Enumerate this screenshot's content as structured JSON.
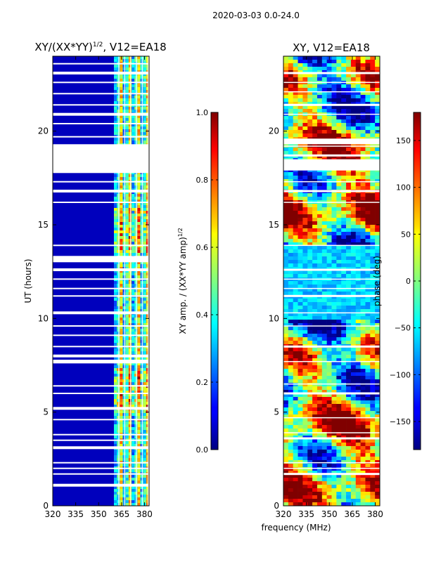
{
  "figure": {
    "suptitle": "2020-03-03 0.0-24.0",
    "xlabel_common": "frequency (MHz)"
  },
  "chart_data": [
    {
      "type": "heatmap",
      "title": "XY/(XX*YY)",
      "title_exp": "1/2",
      "title_suffix": ", V12=EA18",
      "ylabel": "UT (hours)",
      "xlim": [
        320,
        383
      ],
      "ylim": [
        0,
        24
      ],
      "xticks": [
        320,
        335,
        350,
        365,
        380
      ],
      "yticks": [
        0,
        5,
        10,
        15,
        20
      ],
      "colormap": "jet",
      "colorbar": {
        "label": "XY amp. / (XX*YY amp)",
        "label_exp": "1/2",
        "range": [
          0.0,
          1.0
        ],
        "ticks": [
          "0.0",
          "0.2",
          "0.4",
          "0.6",
          "0.8",
          "1.0"
        ]
      },
      "data_regions": [
        {
          "x_range": [
            320,
            360
          ],
          "value_range": [
            0.02,
            0.1
          ],
          "note": "low amplitude"
        },
        {
          "x_range": [
            360,
            383
          ],
          "value_range": [
            0.2,
            0.9
          ],
          "note": "striped high amplitude"
        }
      ]
    },
    {
      "type": "heatmap",
      "title": "XY, V12=EA18",
      "xlim": [
        320,
        383
      ],
      "ylim": [
        0,
        24
      ],
      "xticks": [
        320,
        335,
        350,
        365,
        380
      ],
      "yticks": [
        0,
        5,
        10,
        15,
        20
      ],
      "colormap": "jet",
      "colorbar": {
        "label": "phase (deg)",
        "range": [
          -180,
          180
        ],
        "ticks": [
          "−150",
          "−100",
          "−50",
          "0",
          "50",
          "100",
          "150"
        ]
      }
    }
  ]
}
